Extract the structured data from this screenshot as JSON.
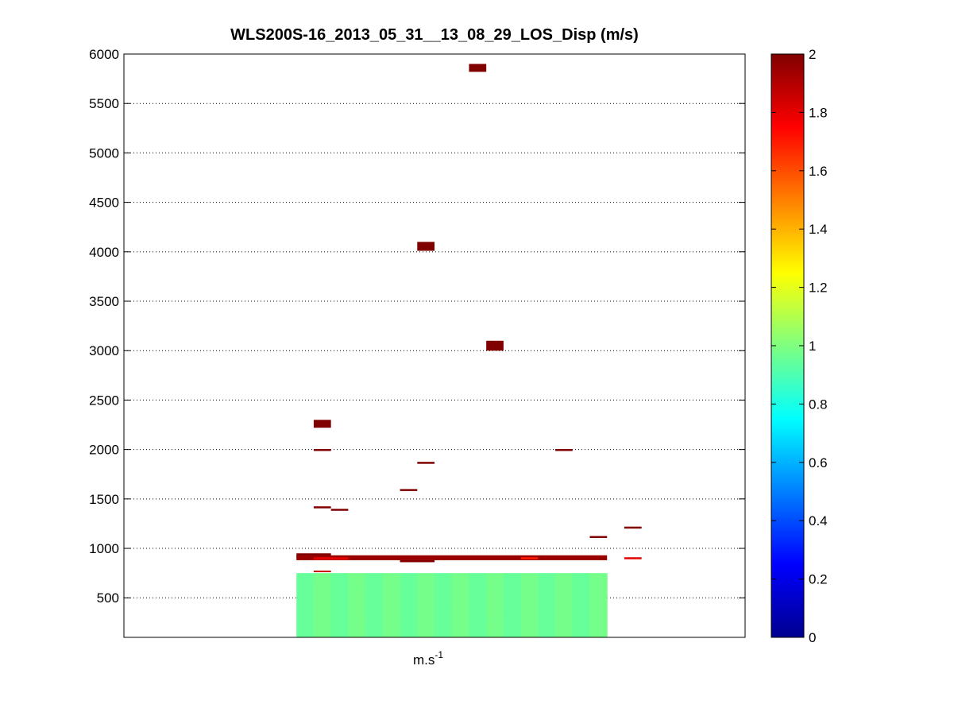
{
  "chart_data": {
    "type": "heatmap",
    "title": "WLS200S-16_2013_05_31__13_08_29_LOS_Disp (m/s)",
    "xlabel_base": "m.s",
    "xlabel_exponent": "-1",
    "ylabel": "",
    "ylim": [
      100,
      6000
    ],
    "yticks": [
      500,
      1000,
      1500,
      2000,
      2500,
      3000,
      3500,
      4000,
      4500,
      5000,
      5500,
      6000
    ],
    "ytick_labels": [
      "500",
      "1000",
      "1500",
      "2000",
      "2500",
      "3000",
      "3500",
      "4000",
      "4500",
      "5000",
      "5500",
      "6000"
    ],
    "grid": "horizontal dotted",
    "colorbar": {
      "colormap": "jet",
      "range": [
        0,
        2
      ],
      "ticks": [
        0,
        0.2,
        0.4,
        0.6,
        0.8,
        1,
        1.2,
        1.4,
        1.6,
        1.8,
        2
      ],
      "tick_labels": [
        "0",
        "0.2",
        "0.4",
        "0.6",
        "0.8",
        "1",
        "1.2",
        "1.4",
        "1.6",
        "1.8",
        "2"
      ]
    },
    "x_column_range": [
      0,
      18
    ],
    "data_column_span": [
      5,
      14
    ],
    "cells": [
      {
        "x0": 5.5,
        "x1": 6.0,
        "y0": 2220,
        "y1": 2300,
        "v": 2.0
      },
      {
        "x0": 8.5,
        "x1": 9.0,
        "y0": 4010,
        "y1": 4100,
        "v": 2.0
      },
      {
        "x0": 10.0,
        "x1": 10.5,
        "y0": 5820,
        "y1": 5900,
        "v": 2.0
      },
      {
        "x0": 10.5,
        "x1": 11.0,
        "y0": 3000,
        "y1": 3100,
        "v": 2.0
      },
      {
        "x0": 5.5,
        "x1": 6.0,
        "y0": 1985,
        "y1": 2005,
        "v": 2.0
      },
      {
        "x0": 5.5,
        "x1": 6.0,
        "y0": 1405,
        "y1": 1425,
        "v": 2.0
      },
      {
        "x0": 6.0,
        "x1": 6.5,
        "y0": 1380,
        "y1": 1400,
        "v": 2.0
      },
      {
        "x0": 8.0,
        "x1": 8.5,
        "y0": 1580,
        "y1": 1600,
        "v": 2.0
      },
      {
        "x0": 8.5,
        "x1": 9.0,
        "y0": 1855,
        "y1": 1875,
        "v": 2.0
      },
      {
        "x0": 12.5,
        "x1": 13.0,
        "y0": 1985,
        "y1": 2005,
        "v": 2.0
      },
      {
        "x0": 13.5,
        "x1": 14.0,
        "y0": 1105,
        "y1": 1125,
        "v": 2.0
      },
      {
        "x0": 14.5,
        "x1": 15.0,
        "y0": 1200,
        "y1": 1220,
        "v": 2.0
      },
      {
        "x0": 5.0,
        "x1": 6.0,
        "y0": 900,
        "y1": 950,
        "v": 2.0
      },
      {
        "x0": 5.0,
        "x1": 14.0,
        "y0": 880,
        "y1": 930,
        "v": 1.95
      },
      {
        "x0": 5.5,
        "x1": 6.5,
        "y0": 885,
        "y1": 910,
        "v": 1.8
      },
      {
        "x0": 8.0,
        "x1": 9.0,
        "y0": 860,
        "y1": 880,
        "v": 2.0
      },
      {
        "x0": 11.5,
        "x1": 12.0,
        "y0": 890,
        "y1": 910,
        "v": 1.7
      },
      {
        "x0": 14.5,
        "x1": 15.0,
        "y0": 890,
        "y1": 910,
        "v": 1.8
      },
      {
        "x0": 5.5,
        "x1": 6.0,
        "y0": 760,
        "y1": 775,
        "v": 1.85
      }
    ]
  }
}
